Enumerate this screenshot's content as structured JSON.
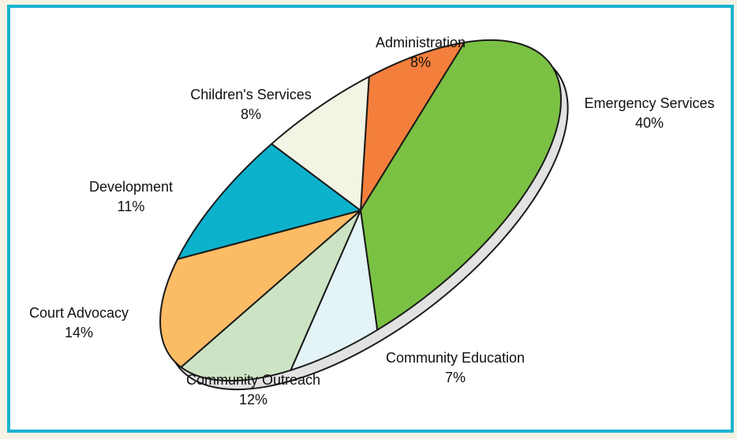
{
  "chart_data": {
    "type": "pie",
    "title": "",
    "slices": [
      {
        "label": "Administration",
        "value": 8,
        "display": "8%",
        "color": "#f47f3c"
      },
      {
        "label": "Emergency Services",
        "value": 40,
        "display": "40%",
        "color": "#7bc143"
      },
      {
        "label": "Community Education",
        "value": 7,
        "display": "7%",
        "color": "#e3f3f6"
      },
      {
        "label": "Community Outreach",
        "value": 12,
        "display": "12%",
        "color": "#cde4c4"
      },
      {
        "label": "Court Advocacy",
        "value": 14,
        "display": "14%",
        "color": "#fcbc66"
      },
      {
        "label": "Development",
        "value": 11,
        "display": "11%",
        "color": "#0cb2cc"
      },
      {
        "label": "Children's Services",
        "value": 8,
        "display": "8%",
        "color": "#f2f5e4"
      }
    ],
    "colors": {
      "frame": "#1ab3d0",
      "background": "#f6f3e4",
      "edge": "#e2e2e2",
      "stroke": "#1a1a1a"
    }
  }
}
